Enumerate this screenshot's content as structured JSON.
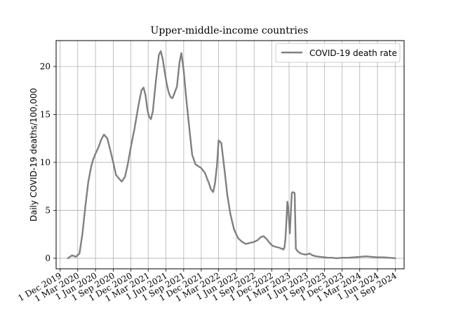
{
  "chart_data": {
    "type": "line",
    "title": "Upper-middle-income countries",
    "xlabel": "",
    "ylabel": "Daily COVID-19 deaths/100,000",
    "ylim": [
      -1.1,
      22.7
    ],
    "xlim": [
      "2019-11-10",
      "2024-10-17"
    ],
    "grid": true,
    "legend_position": "top-right",
    "line_color": "#808080",
    "yticks": [
      0,
      5,
      10,
      15,
      20
    ],
    "xticks": [
      "1 Dec 2019",
      "1 Mar 2020",
      "1 Jun 2020",
      "1 Sep 2020",
      "1 Dec 2020",
      "1 Mar 2021",
      "1 Jun 2021",
      "1 Sep 2021",
      "1 Dec 2021",
      "1 Mar 2022",
      "1 Jun 2022",
      "1 Sep 2022",
      "1 Dec 2022",
      "1 Mar 2023",
      "1 Jun 2023",
      "1 Sep 2023",
      "1 Dec 2023",
      "1 Mar 2024",
      "1 Jun 2024",
      "1 Sep 2024"
    ],
    "xtick_dates": [
      "2019-12-01",
      "2020-03-01",
      "2020-06-01",
      "2020-09-01",
      "2020-12-01",
      "2021-03-01",
      "2021-06-01",
      "2021-09-01",
      "2021-12-01",
      "2022-03-01",
      "2022-06-01",
      "2022-09-01",
      "2022-12-01",
      "2023-03-01",
      "2023-06-01",
      "2023-09-01",
      "2023-12-01",
      "2024-03-01",
      "2024-06-01",
      "2024-09-01"
    ],
    "series": [
      {
        "name": "COVID-19 death rate",
        "x": [
          "2020-01-10",
          "2020-02-01",
          "2020-02-20",
          "2020-03-10",
          "2020-03-25",
          "2020-04-10",
          "2020-04-25",
          "2020-05-10",
          "2020-05-20",
          "2020-06-01",
          "2020-06-15",
          "2020-07-01",
          "2020-07-15",
          "2020-08-01",
          "2020-08-10",
          "2020-08-20",
          "2020-09-01",
          "2020-09-15",
          "2020-10-01",
          "2020-10-15",
          "2020-11-01",
          "2020-11-15",
          "2020-12-01",
          "2020-12-20",
          "2021-01-10",
          "2021-01-25",
          "2021-02-05",
          "2021-02-15",
          "2021-02-25",
          "2021-03-05",
          "2021-03-15",
          "2021-03-25",
          "2021-04-10",
          "2021-04-25",
          "2021-05-05",
          "2021-05-15",
          "2021-05-25",
          "2021-06-05",
          "2021-06-15",
          "2021-06-25",
          "2021-07-05",
          "2021-07-15",
          "2021-07-28",
          "2021-08-10",
          "2021-08-20",
          "2021-09-01",
          "2021-09-15",
          "2021-10-01",
          "2021-10-15",
          "2021-11-01",
          "2021-11-15",
          "2021-12-01",
          "2021-12-20",
          "2022-01-10",
          "2022-01-20",
          "2022-02-01",
          "2022-02-10",
          "2022-02-20",
          "2022-03-01",
          "2022-03-15",
          "2022-04-01",
          "2022-04-15",
          "2022-05-01",
          "2022-05-20",
          "2022-06-10",
          "2022-07-01",
          "2022-07-20",
          "2022-08-10",
          "2022-09-01",
          "2022-09-20",
          "2022-10-05",
          "2022-10-20",
          "2022-11-05",
          "2022-11-20",
          "2022-12-05",
          "2022-12-20",
          "2023-01-10",
          "2023-01-20",
          "2023-01-25",
          "2023-01-30",
          "2023-02-05",
          "2023-02-10",
          "2023-02-15",
          "2023-02-20",
          "2023-02-25",
          "2023-03-05",
          "2023-03-15",
          "2023-03-20",
          "2023-03-25",
          "2023-03-30",
          "2023-04-05",
          "2023-04-15",
          "2023-05-01",
          "2023-05-20",
          "2023-06-01",
          "2023-06-15",
          "2023-07-01",
          "2023-07-20",
          "2023-08-10",
          "2023-09-01",
          "2023-09-20",
          "2023-10-10",
          "2023-11-01",
          "2023-12-01",
          "2024-01-01",
          "2024-02-01",
          "2024-03-01",
          "2024-04-01",
          "2024-05-01",
          "2024-06-01",
          "2024-07-01",
          "2024-08-01",
          "2024-09-01"
        ],
        "y": [
          0.0,
          0.3,
          0.15,
          0.5,
          2.5,
          5.5,
          8.0,
          9.6,
          10.3,
          10.9,
          11.5,
          12.4,
          12.9,
          12.5,
          11.8,
          11.0,
          10.0,
          8.7,
          8.3,
          8.0,
          8.5,
          9.8,
          11.6,
          13.5,
          16.0,
          17.5,
          17.8,
          17.0,
          15.5,
          14.8,
          14.5,
          15.3,
          18.5,
          21.2,
          21.6,
          20.8,
          19.5,
          18.2,
          17.3,
          16.8,
          16.7,
          17.2,
          17.9,
          20.4,
          21.4,
          19.6,
          16.5,
          13.4,
          10.8,
          9.8,
          9.6,
          9.4,
          8.9,
          7.8,
          7.2,
          6.9,
          7.8,
          9.6,
          12.3,
          12.0,
          9.1,
          6.6,
          4.6,
          3.0,
          2.1,
          1.7,
          1.5,
          1.6,
          1.7,
          1.9,
          2.2,
          2.3,
          2.0,
          1.6,
          1.3,
          1.2,
          1.1,
          1.0,
          1.0,
          0.9,
          1.1,
          2.0,
          3.8,
          5.9,
          5.2,
          2.6,
          6.8,
          6.9,
          6.85,
          6.8,
          1.0,
          0.7,
          0.5,
          0.4,
          0.4,
          0.5,
          0.3,
          0.2,
          0.15,
          0.1,
          0.05,
          0.05,
          0.0,
          0.05,
          0.05,
          0.1,
          0.15,
          0.2,
          0.15,
          0.1,
          0.1,
          0.05,
          0.0
        ]
      }
    ]
  }
}
